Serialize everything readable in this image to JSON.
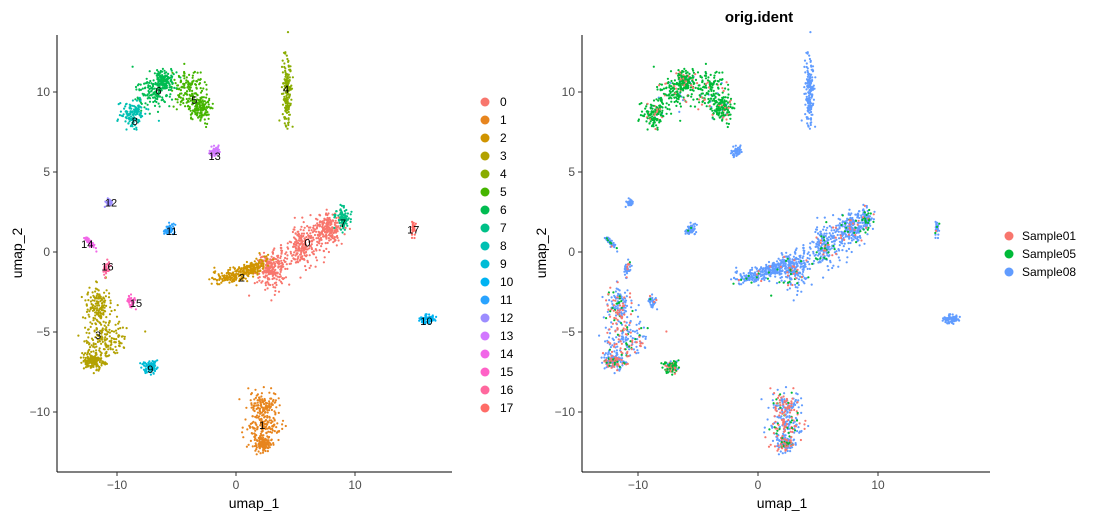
{
  "chart_data": [
    {
      "type": "scatter",
      "title": "",
      "xlabel": "umap_1",
      "ylabel": "umap_2",
      "xlim": [
        -14,
        19
      ],
      "ylim": [
        -14,
        13.5
      ],
      "x_ticks": [
        -10,
        0,
        10
      ],
      "y_ticks": [
        10,
        5,
        0,
        -5,
        -10
      ],
      "legend_position": "right",
      "series": [
        {
          "name": "0",
          "color": "#F8766D",
          "label_pos": [
            6,
            0.6
          ]
        },
        {
          "name": "1",
          "color": "#E7851E",
          "label_pos": [
            2.2,
            -10.8
          ]
        },
        {
          "name": "2",
          "color": "#D09400",
          "label_pos": [
            0.5,
            -1.6
          ]
        },
        {
          "name": "3",
          "color": "#B2A100",
          "label_pos": [
            -11.6,
            -5.2
          ]
        },
        {
          "name": "4",
          "color": "#89AC00",
          "label_pos": [
            4.2,
            10.2
          ]
        },
        {
          "name": "5",
          "color": "#45B500",
          "label_pos": [
            -3.5,
            9.5
          ]
        },
        {
          "name": "6",
          "color": "#00BC51",
          "label_pos": [
            -6.5,
            10.1
          ]
        },
        {
          "name": "7",
          "color": "#00C087",
          "label_pos": [
            9.0,
            1.8
          ]
        },
        {
          "name": "8",
          "color": "#00C0B2",
          "label_pos": [
            -8.5,
            8.2
          ]
        },
        {
          "name": "9",
          "color": "#00BCD6",
          "label_pos": [
            -7.2,
            -7.3
          ]
        },
        {
          "name": "10",
          "color": "#00B3F2",
          "label_pos": [
            16.0,
            -4.3
          ]
        },
        {
          "name": "11",
          "color": "#29A3FF",
          "label_pos": [
            -5.4,
            1.3
          ]
        },
        {
          "name": "12",
          "color": "#9C8DFF",
          "label_pos": [
            -10.5,
            3.1
          ]
        },
        {
          "name": "13",
          "color": "#D277FF",
          "label_pos": [
            -1.8,
            6.0
          ]
        },
        {
          "name": "14",
          "color": "#F166E8",
          "label_pos": [
            -12.5,
            0.5
          ]
        },
        {
          "name": "15",
          "color": "#FF61C7",
          "label_pos": [
            -8.4,
            -3.2
          ]
        },
        {
          "name": "16",
          "color": "#FF689E",
          "label_pos": [
            -10.8,
            -0.9
          ]
        },
        {
          "name": "17",
          "color": "#FF6C67",
          "label_pos": [
            14.9,
            1.4
          ]
        }
      ],
      "legend_entries": [
        "0",
        "1",
        "2",
        "3",
        "4",
        "5",
        "6",
        "7",
        "8",
        "9",
        "10",
        "11",
        "12",
        "13",
        "14",
        "15",
        "16",
        "17"
      ]
    },
    {
      "type": "scatter",
      "title": "orig.ident",
      "xlabel": "umap_1",
      "ylabel": "umap_2",
      "xlim": [
        -14,
        19
      ],
      "ylim": [
        -14,
        13.5
      ],
      "x_ticks": [
        -10,
        0,
        10
      ],
      "y_ticks": [
        10,
        5,
        0,
        -5,
        -10
      ],
      "legend_position": "right",
      "series": [
        {
          "name": "Sample01",
          "color": "#F8766D"
        },
        {
          "name": "Sample05",
          "color": "#00BA38"
        },
        {
          "name": "Sample08",
          "color": "#619CFF"
        }
      ],
      "legend_entries": [
        "Sample01",
        "Sample05",
        "Sample08"
      ]
    }
  ]
}
